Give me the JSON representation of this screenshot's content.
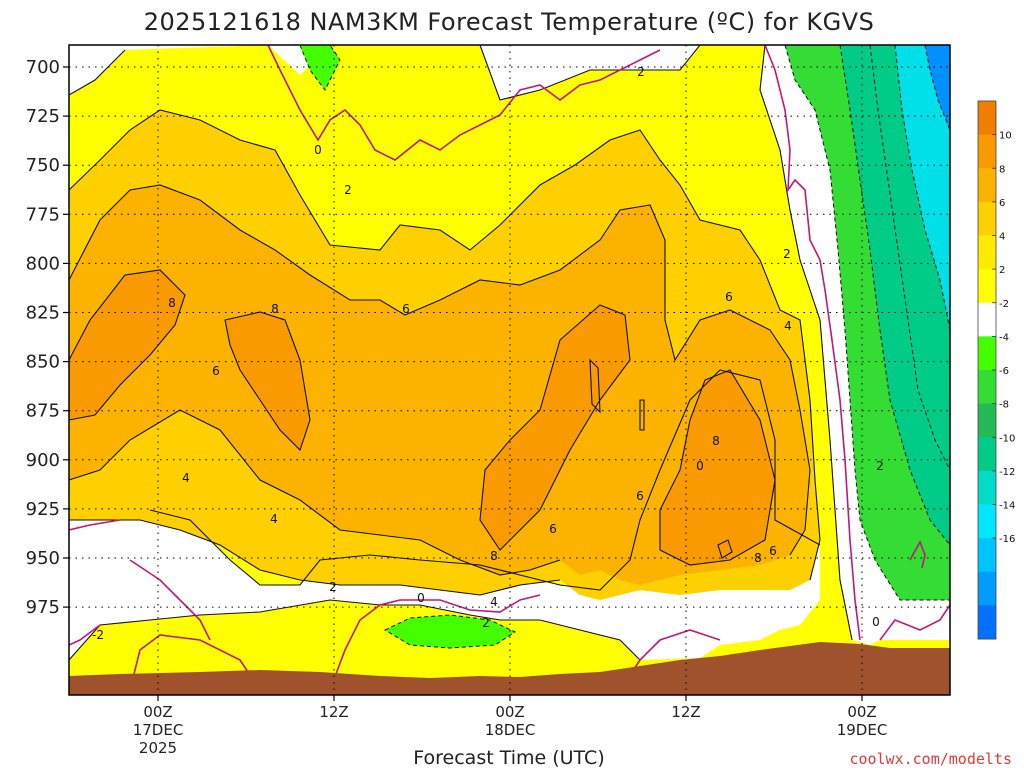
{
  "chart_data": {
    "type": "heatmap",
    "title": "2025121618 NAM3KM Forecast Temperature (ºC) for KGVS",
    "xlabel": "Forecast Time (UTC)",
    "ylabel": "",
    "y_axis": {
      "ticks": [
        "700",
        "725",
        "750",
        "775",
        "800",
        "825",
        "850",
        "875",
        "900",
        "925",
        "950",
        "975"
      ],
      "inverted": true,
      "unit": "hPa"
    },
    "x_axis": {
      "tick_labels": [
        {
          "lines": [
            "00Z",
            "17DEC",
            "2025"
          ]
        },
        {
          "lines": [
            "12Z"
          ]
        },
        {
          "lines": [
            "00Z",
            "18DEC"
          ]
        },
        {
          "lines": [
            "12Z"
          ]
        },
        {
          "lines": [
            "00Z",
            "19DEC"
          ]
        }
      ]
    },
    "grid": true,
    "colorbar": {
      "ticks": [
        "10",
        "8",
        "6",
        "4",
        "2",
        "-2",
        "-4",
        "-6",
        "-8",
        "-10",
        "-12",
        "-14",
        "-16"
      ],
      "colors": [
        "#f07e00",
        "#f89a00",
        "#fbb300",
        "#ffd000",
        "#ffeb00",
        "#ffff00",
        "#ffffff",
        "#44ff00",
        "#33dd33",
        "#22bb55",
        "#00cc88",
        "#00dcc8",
        "#00e8ff",
        "#00c4ff",
        "#009cff",
        "#0072ff"
      ]
    },
    "contour_labels": [
      "2",
      "0",
      "2",
      "8",
      "8",
      "6",
      "6",
      "4",
      "4",
      "2",
      "0",
      "4",
      "2",
      "8",
      "6",
      "6",
      "6",
      "8",
      "2",
      "6",
      "4",
      "2",
      "-2",
      "0",
      "0",
      "8"
    ],
    "colors": {
      "ground": "#a0522d",
      "contour_line": "#111111",
      "freezing_line": "#c0187a"
    },
    "credit": "coolwx.com/modelts"
  }
}
